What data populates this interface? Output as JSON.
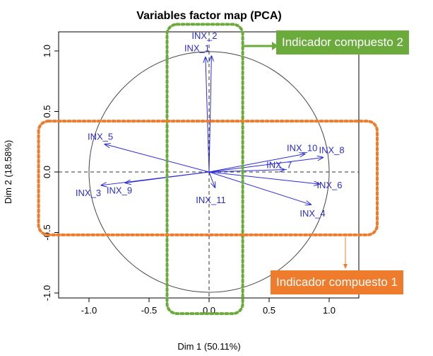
{
  "chart_data": {
    "type": "scatter",
    "subtype": "pca-variables-factor-map",
    "title": "Variables factor map (PCA)",
    "xlabel": "Dim 1 (50.11%)",
    "ylabel": "Dim 2 (18.58%)",
    "xlim": [
      -1.25,
      1.25
    ],
    "ylim": [
      -1.05,
      1.1
    ],
    "xticks": [
      -1.0,
      -0.5,
      0.0,
      0.5,
      1.0
    ],
    "yticks": [
      -1.0,
      -0.5,
      0.0,
      0.5,
      1.0
    ],
    "xtick_labels": [
      "-1.0",
      "-0.5",
      "0.0",
      "0.5",
      "1.0"
    ],
    "ytick_labels": [
      "-1.0",
      "-0.5",
      "0.0",
      "0.5",
      "1.0"
    ],
    "unit_circle": true,
    "reference_lines": "dashed lines at x=0 and y=0",
    "arrow_color": "#2b2bdc",
    "variables": [
      {
        "name": "INX_1",
        "x": -0.03,
        "y": 0.95
      },
      {
        "name": "INX_2",
        "x": 0.02,
        "y": 0.96
      },
      {
        "name": "INX_3",
        "x": -0.9,
        "y": -0.11
      },
      {
        "name": "INX_4",
        "x": 0.85,
        "y": -0.27
      },
      {
        "name": "INX_5",
        "x": -0.87,
        "y": 0.23
      },
      {
        "name": "INX_6",
        "x": 0.92,
        "y": -0.1
      },
      {
        "name": "INX_7",
        "x": 0.63,
        "y": 0.02
      },
      {
        "name": "INX_8",
        "x": 0.95,
        "y": 0.12
      },
      {
        "name": "INX_9",
        "x": -0.7,
        "y": -0.09
      },
      {
        "name": "INX_10",
        "x": 0.8,
        "y": 0.15
      },
      {
        "name": "INX_11",
        "x": 0.05,
        "y": -0.13
      }
    ],
    "highlight_regions": [
      {
        "name": "Indicador compuesto 2",
        "color": "#6aab3b",
        "style": "dotted",
        "x_range": [
          -0.35,
          0.28
        ],
        "y_range": [
          -1.17,
          1.22
        ]
      },
      {
        "name": "Indicador compuesto 1",
        "color": "#ef7b2c",
        "style": "dotted",
        "x_range": [
          -1.42,
          1.4
        ],
        "y_range": [
          -0.52,
          0.42
        ]
      }
    ]
  },
  "callouts": {
    "green_label": "Indicador compuesto 2",
    "orange_label": "Indicador compuesto 1",
    "green_color": "#6aab3b",
    "orange_color": "#ef7b2c"
  }
}
